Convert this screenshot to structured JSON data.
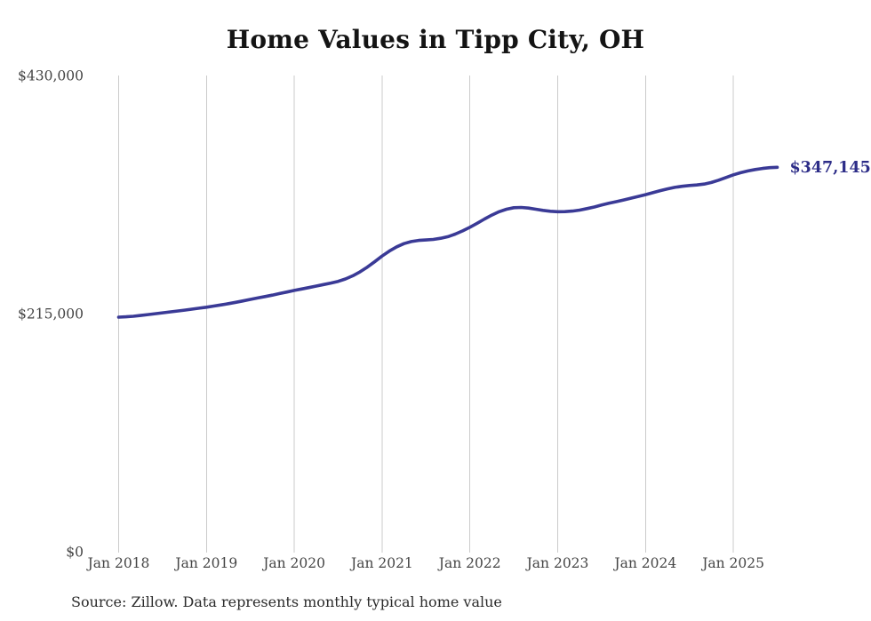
{
  "chart": {
    "title": "Home Values in Tipp City, OH",
    "end_label": "$347,145",
    "source": "Source: Zillow. Data represents monthly typical home value"
  },
  "chart_data": {
    "type": "line",
    "title": "Home Values in Tipp City, OH",
    "series_name": "Typical home value (monthly, Zillow)",
    "x_start": "Jan 2018",
    "x_end": "Jul 2025",
    "x_interval": "month",
    "x_tick_labels": [
      "Jan 2018",
      "Jan 2019",
      "Jan 2020",
      "Jan 2021",
      "Jan 2022",
      "Jan 2023",
      "Jan 2024",
      "Jan 2025"
    ],
    "y_ticks": [
      {
        "label": "$0",
        "value": 0
      },
      {
        "label": "$215,000",
        "value": 215000
      },
      {
        "label": "$430,000",
        "value": 430000
      }
    ],
    "ylim": [
      0,
      430000
    ],
    "grid": "vertical-only",
    "legend": "none",
    "line_color": "#3a3a96",
    "grid_color": "#cbcbcb",
    "annotation": {
      "text": "$347,145",
      "color": "#2d2d88"
    },
    "latest_value": 347145,
    "values": [
      211800,
      212100,
      212600,
      213300,
      214100,
      214900,
      215700,
      216500,
      217300,
      218100,
      219000,
      219900,
      220800,
      221800,
      222900,
      224000,
      225200,
      226500,
      227800,
      229100,
      230400,
      231700,
      233100,
      234500,
      235900,
      237200,
      238500,
      239900,
      241200,
      242600,
      244100,
      246300,
      249200,
      252800,
      257000,
      261900,
      267000,
      271500,
      275300,
      278200,
      280100,
      281100,
      281500,
      282000,
      283000,
      284500,
      286800,
      289700,
      293000,
      296600,
      300400,
      304000,
      307000,
      309300,
      310600,
      310900,
      310300,
      309300,
      308200,
      307400,
      307000,
      307100,
      307600,
      308500,
      309800,
      311300,
      313000,
      314600,
      316100,
      317600,
      319200,
      320800,
      322400,
      324200,
      326000,
      327600,
      329000,
      330000,
      330700,
      331200,
      332000,
      333400,
      335500,
      337900,
      340300,
      342200,
      343800,
      345100,
      346100,
      346800,
      347145
    ]
  }
}
